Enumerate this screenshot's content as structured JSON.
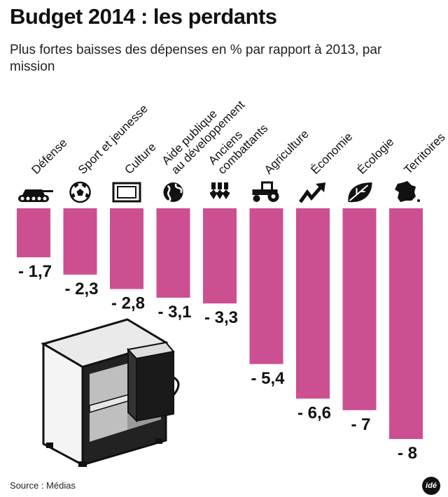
{
  "title": "Budget 2014 : les perdants",
  "subtitle": "Plus fortes baisses des dépenses en % par rapport à 2013, par mission",
  "source": "Source : Médias",
  "logo_text": "idé",
  "colors": {
    "bar": "#cc4f91",
    "text": "#111111"
  },
  "chart_data": {
    "type": "bar",
    "orientation": "vertical-downward",
    "categories": [
      [
        "Défense"
      ],
      [
        "Sport et jeunesse"
      ],
      [
        "Culture"
      ],
      [
        "Aide publique",
        "au développement"
      ],
      [
        "Anciens",
        "combattants"
      ],
      [
        "Agriculture"
      ],
      [
        "Économie"
      ],
      [
        "Écologie"
      ],
      [
        "Territoires"
      ]
    ],
    "values": [
      -1.7,
      -2.3,
      -2.8,
      -3.1,
      -3.3,
      -5.4,
      -6.6,
      -7,
      -8
    ],
    "value_labels": [
      "- 1,7",
      "- 2,3",
      "- 2,8",
      "- 3,1",
      "- 3,3",
      "- 5,4",
      "- 6,6",
      "- 7",
      "- 8"
    ],
    "icons": [
      "tank-icon",
      "soccer-ball-icon",
      "picture-frame-icon",
      "globe-icon",
      "medals-icon",
      "tractor-icon",
      "rising-arrow-icon",
      "leaf-icon",
      "france-map-icon"
    ],
    "ylim": [
      -8,
      0
    ],
    "grid": false,
    "legend": "none",
    "xlabel": "",
    "ylabel": ""
  }
}
